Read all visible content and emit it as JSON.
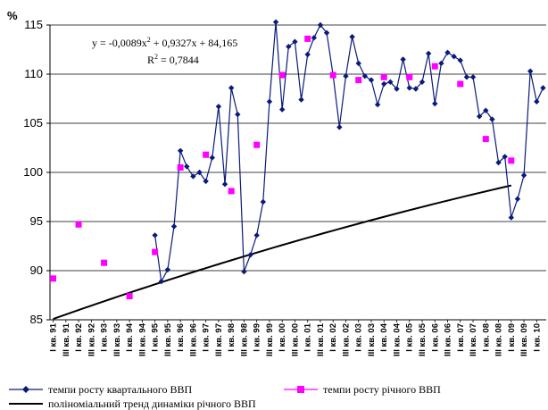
{
  "chart_data": {
    "type": "line",
    "ylabel": "%",
    "ylim": [
      85,
      115
    ],
    "yticks": [
      85,
      90,
      95,
      100,
      105,
      110,
      115
    ],
    "x_tick_labels": [
      "I кв. 91",
      "III кв. 91",
      "I кв. 92",
      "III кв. 92",
      "I кв. 93",
      "III кв. 93",
      "I кв. 94",
      "III кв. 94",
      "I кв. 95",
      "III кв. 95",
      "I кв. 96",
      "III кв. 96",
      "I кв. 97",
      "III кв. 97",
      "I кв. 98",
      "III кв. 98",
      "I кв. 99",
      "III кв. 99",
      "I кв. 00",
      "III кв. 00",
      "I кв. 01",
      "III кв. 01",
      "I кв. 02",
      "III кв. 02",
      "I кв. 03",
      "III кв. 03",
      "I кв. 04",
      "III кв. 04",
      "I кв. 05",
      "III кв. 05",
      "I кв. 06",
      "III кв. 06",
      "I кв. 07",
      "III кв. 07",
      "I кв. 08",
      "III кв. 08",
      "I кв. 09",
      "III кв. 09",
      "I кв. 10"
    ],
    "x_periods": 78,
    "grid": "horizontal",
    "legend_position": "bottom",
    "series": [
      {
        "name": "темпи росту квартального ВВП",
        "color": "#0a1a7a",
        "marker": "diamond",
        "start_quarter": 17,
        "values": [
          93.6,
          88.9,
          90.1,
          94.5,
          102.2,
          100.6,
          99.6,
          100.0,
          99.1,
          101.5,
          106.7,
          98.8,
          108.6,
          105.9,
          89.9,
          91.6,
          93.6,
          97.0,
          107.2,
          115.3,
          106.4,
          112.8,
          113.3,
          107.4,
          112.0,
          113.7,
          115.0,
          114.2,
          109.9,
          104.6,
          109.8,
          113.8,
          111.1,
          109.8,
          109.4,
          106.9,
          109.0,
          109.2,
          108.5,
          111.5,
          108.6,
          108.5,
          109.2,
          112.1,
          107.0,
          111.1,
          112.2,
          111.8,
          111.4,
          109.7,
          109.7,
          105.7,
          106.3,
          105.4,
          101.0,
          101.6,
          95.4,
          97.3,
          99.7,
          110.3,
          107.2,
          108.6
        ]
      },
      {
        "name": "темпи росту річного ВВП",
        "color": "#ff00ff",
        "marker": "square",
        "points": [
          {
            "quarter": 1,
            "value": 89.2
          },
          {
            "quarter": 5,
            "value": 94.7
          },
          {
            "quarter": 9,
            "value": 90.8
          },
          {
            "quarter": 13,
            "value": 87.4
          },
          {
            "quarter": 17,
            "value": 91.9
          },
          {
            "quarter": 21,
            "value": 100.5
          },
          {
            "quarter": 25,
            "value": 101.8
          },
          {
            "quarter": 29,
            "value": 98.1
          },
          {
            "quarter": 33,
            "value": 102.8
          },
          {
            "quarter": 37,
            "value": 109.9
          },
          {
            "quarter": 41,
            "value": 113.6
          },
          {
            "quarter": 45,
            "value": 109.9
          },
          {
            "quarter": 49,
            "value": 109.4
          },
          {
            "quarter": 53,
            "value": 109.7
          },
          {
            "quarter": 57,
            "value": 109.7
          },
          {
            "quarter": 61,
            "value": 110.8
          },
          {
            "quarter": 65,
            "value": 109.0
          },
          {
            "quarter": 69,
            "value": 103.4
          },
          {
            "quarter": 73,
            "value": 101.2
          }
        ]
      },
      {
        "name": "поліноміальний тренд динаміки річного ВВП",
        "color": "#000000",
        "type": "trend",
        "x_from": 1,
        "x_to": 19,
        "coefficients": {
          "a": -0.0089,
          "b": 0.9327,
          "c": 84.165
        }
      }
    ],
    "annotation": {
      "equation_prefix": "y = -0,0089x",
      "equation_sup": "2",
      "equation_suffix": " + 0,9327x + 84,165",
      "r2_prefix": "R",
      "r2_sup": "2",
      "r2_suffix": " = 0,7844"
    }
  }
}
